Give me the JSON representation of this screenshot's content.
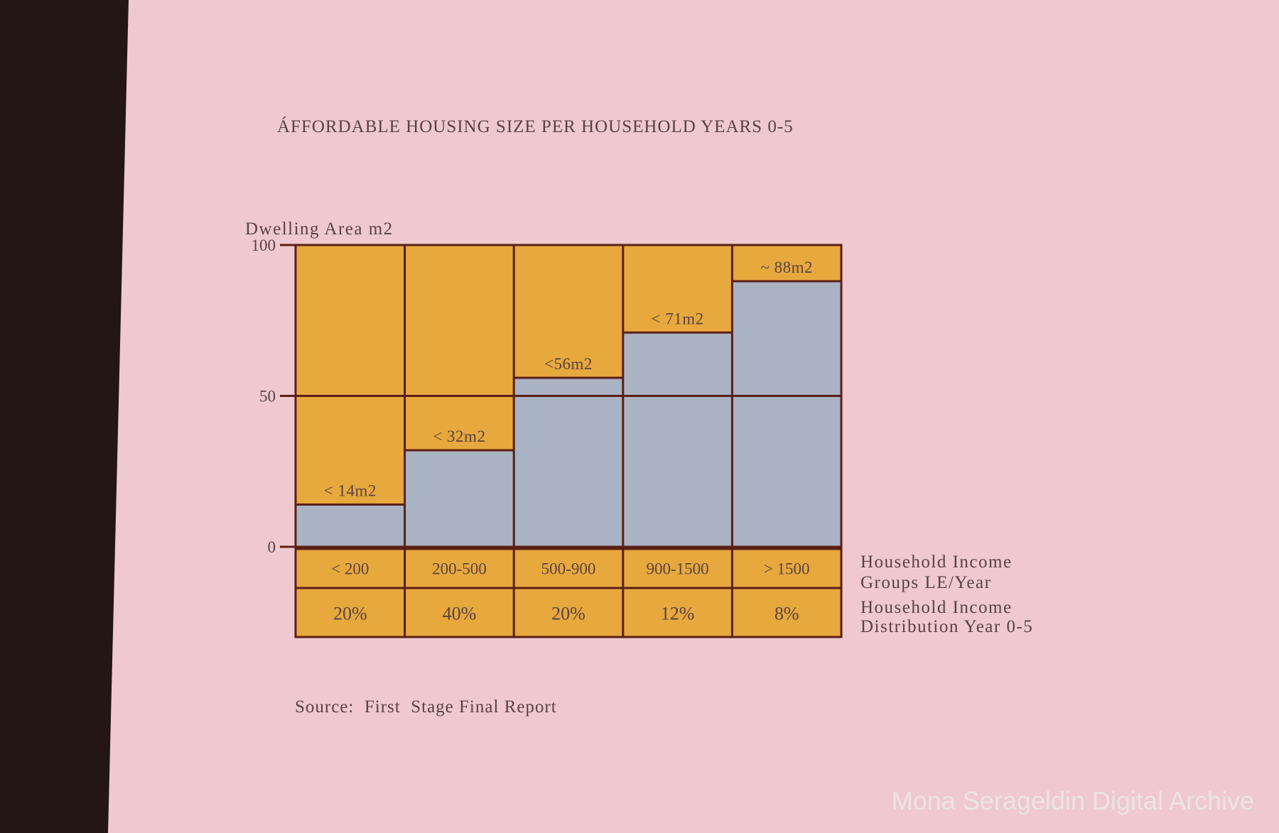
{
  "chart_data": {
    "type": "bar",
    "title": "ÁFFORDABLE HOUSING SIZE PER HOUSEHOLD YEARS 0-5",
    "ylabel": "Dwelling Area m2",
    "ylim": [
      0,
      100
    ],
    "yticks": [
      "100",
      "50",
      "0"
    ],
    "categories": [
      "< 200",
      "200-500",
      "500-900",
      "900-1500",
      "> 1500"
    ],
    "values": [
      14,
      32,
      56,
      71,
      88
    ],
    "bar_labels": [
      "< 14m2",
      "< 32m2",
      "<56m2",
      "< 71m2",
      "~ 88m2"
    ],
    "distribution": [
      "20%",
      "40%",
      "20%",
      "12%",
      "8%"
    ],
    "row_label_income": [
      "Household Income",
      "Groups LE/Year"
    ],
    "row_label_distribution": [
      "Household Income",
      "Distribution Year 0-5"
    ],
    "grid": false,
    "colors": {
      "background": "#efc9cf",
      "fill": "#e7a83e",
      "bar": "#a9b3c3",
      "outline": "#5b1f16",
      "frame": "#231614"
    }
  },
  "source": "Source:  First  Stage Final Report",
  "watermark": "Mona Serageldin Digital Archive"
}
